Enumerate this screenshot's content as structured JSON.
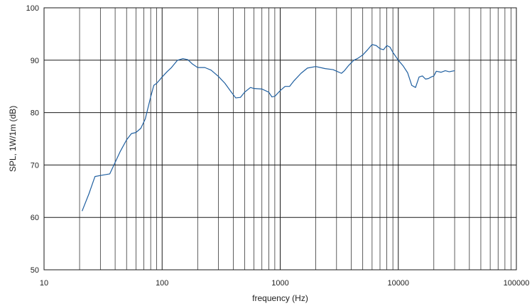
{
  "chart_data": {
    "type": "line",
    "title": "",
    "xlabel": "frequency (Hz)",
    "ylabel": "SPL, 1W/1m (dB)",
    "x_scale": "log",
    "xlim": [
      10,
      100000
    ],
    "ylim": [
      50,
      100
    ],
    "x_ticks": [
      10,
      100,
      1000,
      10000,
      100000
    ],
    "x_tick_labels": [
      "10",
      "100",
      "1000",
      "10000",
      "100000"
    ],
    "y_ticks": [
      50,
      60,
      70,
      80,
      90,
      100
    ],
    "y_tick_labels": [
      "50",
      "60",
      "70",
      "80",
      "90",
      "100"
    ],
    "grid": true,
    "line_color": "#1f5fa0",
    "series": [
      {
        "x": [
          21,
          24,
          27,
          30,
          36,
          40,
          44,
          50,
          55,
          60,
          66,
          72,
          80,
          85,
          90,
          95,
          100,
          110,
          120,
          135,
          150,
          165,
          180,
          200,
          230,
          260,
          300,
          340,
          380,
          420,
          460,
          500,
          560,
          600,
          700,
          800,
          850,
          900,
          1000,
          1100,
          1200,
          1300,
          1500,
          1700,
          2000,
          2400,
          2800,
          3300,
          3500,
          3800,
          4200,
          4500,
          5000,
          5500,
          6000,
          6500,
          7000,
          7500,
          8000,
          8500,
          9000,
          10000,
          11000,
          12000,
          13000,
          14000,
          15000,
          16000,
          17000,
          18000,
          19000,
          20000,
          21000,
          23000,
          25000,
          27000,
          30000
        ],
        "y": [
          61.2,
          64.5,
          67.8,
          68.0,
          68.3,
          70.5,
          72.5,
          74.8,
          76.0,
          76.2,
          77.0,
          78.8,
          83.0,
          85.2,
          85.6,
          86.2,
          86.8,
          87.8,
          88.6,
          90.0,
          90.3,
          90.1,
          89.3,
          88.6,
          88.6,
          88.1,
          86.9,
          85.6,
          84.1,
          82.8,
          82.9,
          83.9,
          84.8,
          84.6,
          84.5,
          83.9,
          83.0,
          83.1,
          84.2,
          85.0,
          85.0,
          86.0,
          87.5,
          88.5,
          88.8,
          88.4,
          88.2,
          87.5,
          88.0,
          89.0,
          90.0,
          90.3,
          91.0,
          92.0,
          93.0,
          92.8,
          92.2,
          92.0,
          92.8,
          92.5,
          91.5,
          90.0,
          88.9,
          87.6,
          85.2,
          84.8,
          86.8,
          87.0,
          86.4,
          86.5,
          86.8,
          87.0,
          87.9,
          87.7,
          88.0,
          87.8,
          88.0
        ]
      }
    ]
  }
}
